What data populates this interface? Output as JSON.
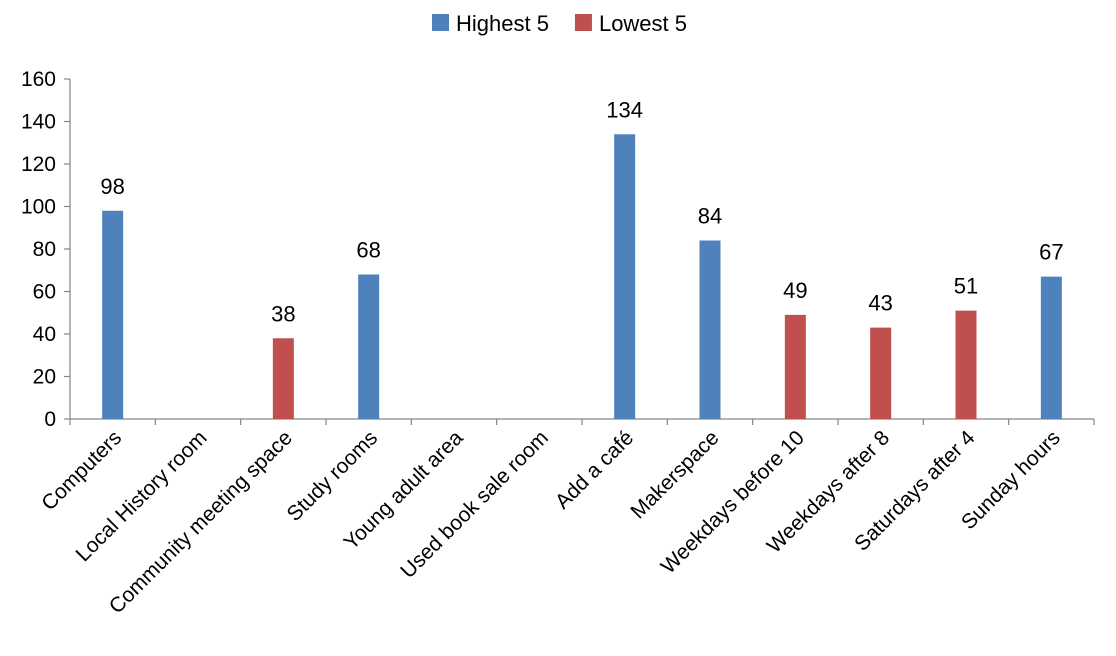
{
  "chart_data": {
    "type": "bar",
    "categories": [
      "Computers",
      "Local History room",
      "Community meeting space",
      "Study rooms",
      "Young adult area",
      "Used book sale room",
      "Add a café",
      "Makerspace",
      "Weekdays before 10",
      "Weekdays after 8",
      "Saturdays after 4",
      "Sunday hours"
    ],
    "series": [
      {
        "name": "Highest 5",
        "color": "#4F81BD",
        "values": [
          98,
          null,
          null,
          68,
          null,
          null,
          134,
          84,
          null,
          null,
          null,
          67
        ]
      },
      {
        "name": "Lowest 5",
        "color": "#C0504D",
        "values": [
          null,
          null,
          38,
          null,
          null,
          null,
          null,
          null,
          49,
          43,
          51,
          null
        ]
      }
    ],
    "ylim": [
      0,
      160
    ],
    "yticks": [
      0,
      20,
      40,
      60,
      80,
      100,
      120,
      140,
      160
    ],
    "legend_position": "top-center",
    "grid": false
  }
}
